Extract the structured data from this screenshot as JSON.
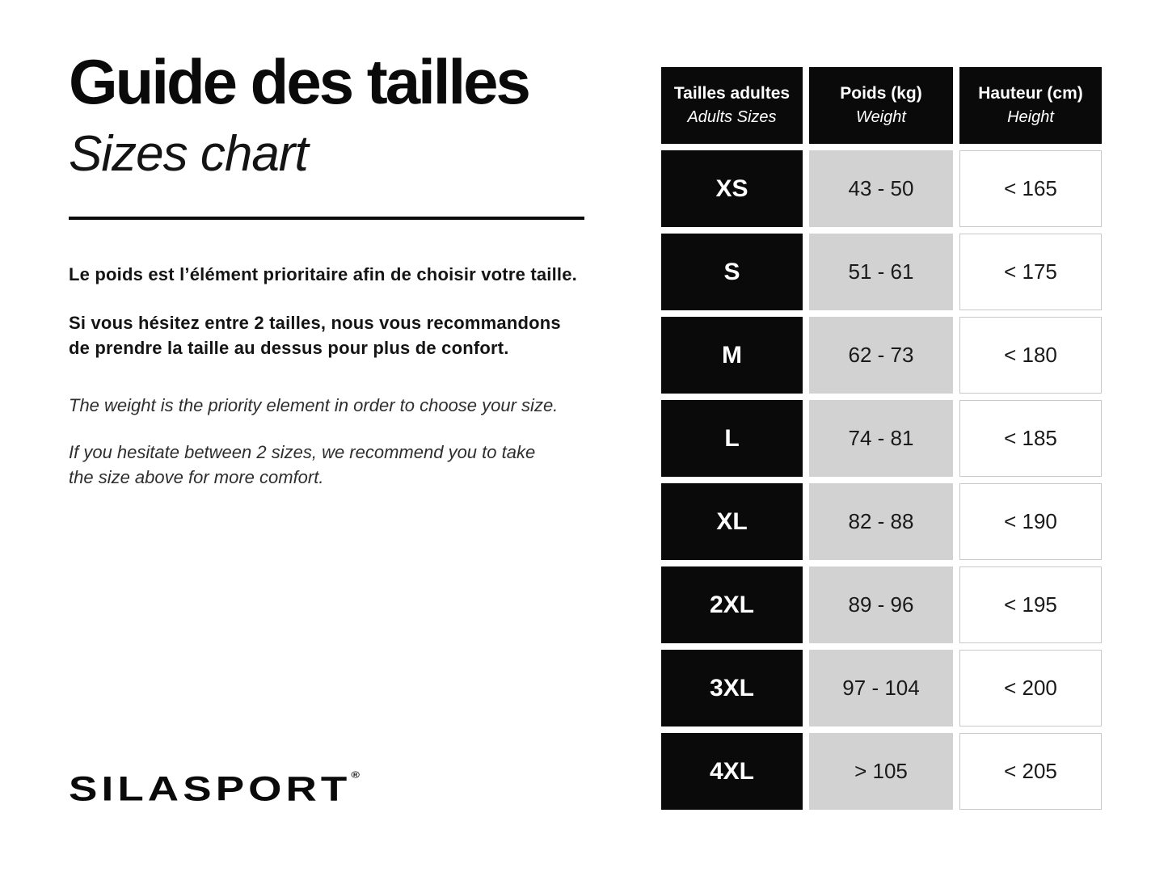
{
  "header": {
    "title": "Guide des tailles",
    "subtitle": "Sizes chart"
  },
  "intro": {
    "fr_para1": "Le poids est l’élément prioritaire afin de choisir votre taille.",
    "fr_para2": "Si vous hésitez entre 2 tailles, nous vous recommandons\nde prendre la taille au dessus pour plus de confort.",
    "en_para1": "The weight is the priority element in order to choose your size.",
    "en_para2": "If you hesitate between 2 sizes, we recommend you to take\nthe size above for more comfort."
  },
  "brand": {
    "name": "SILASPORT",
    "registered_mark": "®"
  },
  "chart_data": {
    "type": "table",
    "title": "Guide des tailles / Sizes chart",
    "columns": [
      {
        "fr": "Tailles adultes",
        "en": "Adults Sizes"
      },
      {
        "fr": "Poids (kg)",
        "en": "Weight"
      },
      {
        "fr": "Hauteur (cm)",
        "en": "Height"
      }
    ],
    "rows": [
      {
        "size": "XS",
        "weight_kg": "43 - 50",
        "height_cm": "< 165"
      },
      {
        "size": "S",
        "weight_kg": "51 - 61",
        "height_cm": "< 175"
      },
      {
        "size": "M",
        "weight_kg": "62 - 73",
        "height_cm": "< 180"
      },
      {
        "size": "L",
        "weight_kg": "74 - 81",
        "height_cm": "< 185"
      },
      {
        "size": "XL",
        "weight_kg": "82 - 88",
        "height_cm": "< 190"
      },
      {
        "size": "2XL",
        "weight_kg": "89 - 96",
        "height_cm": "< 195"
      },
      {
        "size": "3XL",
        "weight_kg": "97 - 104",
        "height_cm": "< 200"
      },
      {
        "size": "4XL",
        "weight_kg": "> 105",
        "height_cm": "< 205"
      }
    ]
  },
  "colors": {
    "background": "#ffffff",
    "cell_black": "#0a0a0a",
    "cell_gray": "#d2d2d2",
    "cell_white_border": "#c9c9c9",
    "text": "#111111"
  }
}
